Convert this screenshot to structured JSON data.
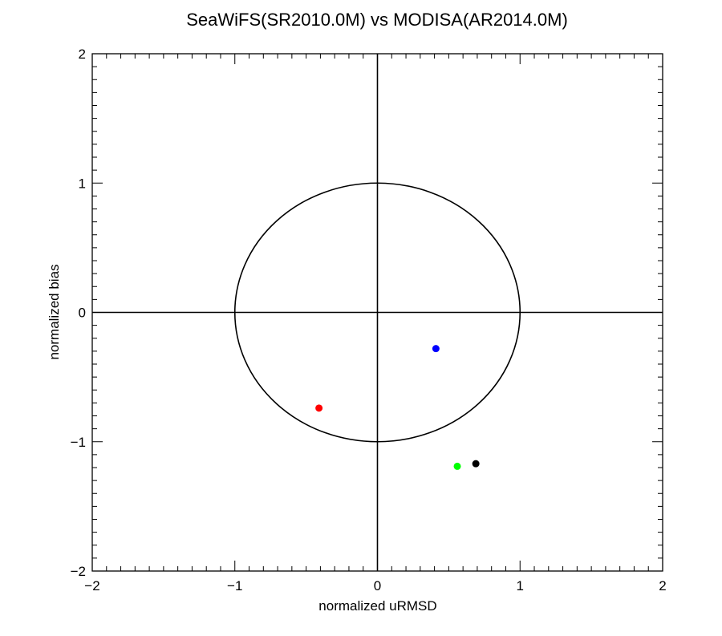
{
  "chart_data": {
    "type": "scatter",
    "title": "SeaWiFS(SR2010.0M) vs MODISA(AR2014.0M)",
    "xlabel": "normalized uRMSD",
    "ylabel": "normalized bias",
    "xlim": [
      -2,
      2
    ],
    "ylim": [
      -2,
      2
    ],
    "xticks": [
      -2,
      -1,
      0,
      1,
      2
    ],
    "yticks": [
      -2,
      -1,
      0,
      1,
      2
    ],
    "xtick_labels": [
      "−2",
      "−1",
      "0",
      "1",
      "2"
    ],
    "ytick_labels": [
      "−2",
      "−1",
      "0",
      "1",
      "2"
    ],
    "grid": false,
    "reference_lines": {
      "x": 0,
      "y": 0
    },
    "reference_circle": {
      "center": [
        0,
        0
      ],
      "radius": 1
    },
    "points": [
      {
        "x": 0.41,
        "y": -0.28,
        "color": "#0000ff"
      },
      {
        "x": -0.41,
        "y": -0.74,
        "color": "#ff0000"
      },
      {
        "x": 0.56,
        "y": -1.19,
        "color": "#00ff00"
      },
      {
        "x": 0.69,
        "y": -1.17,
        "color": "#000000"
      }
    ]
  }
}
